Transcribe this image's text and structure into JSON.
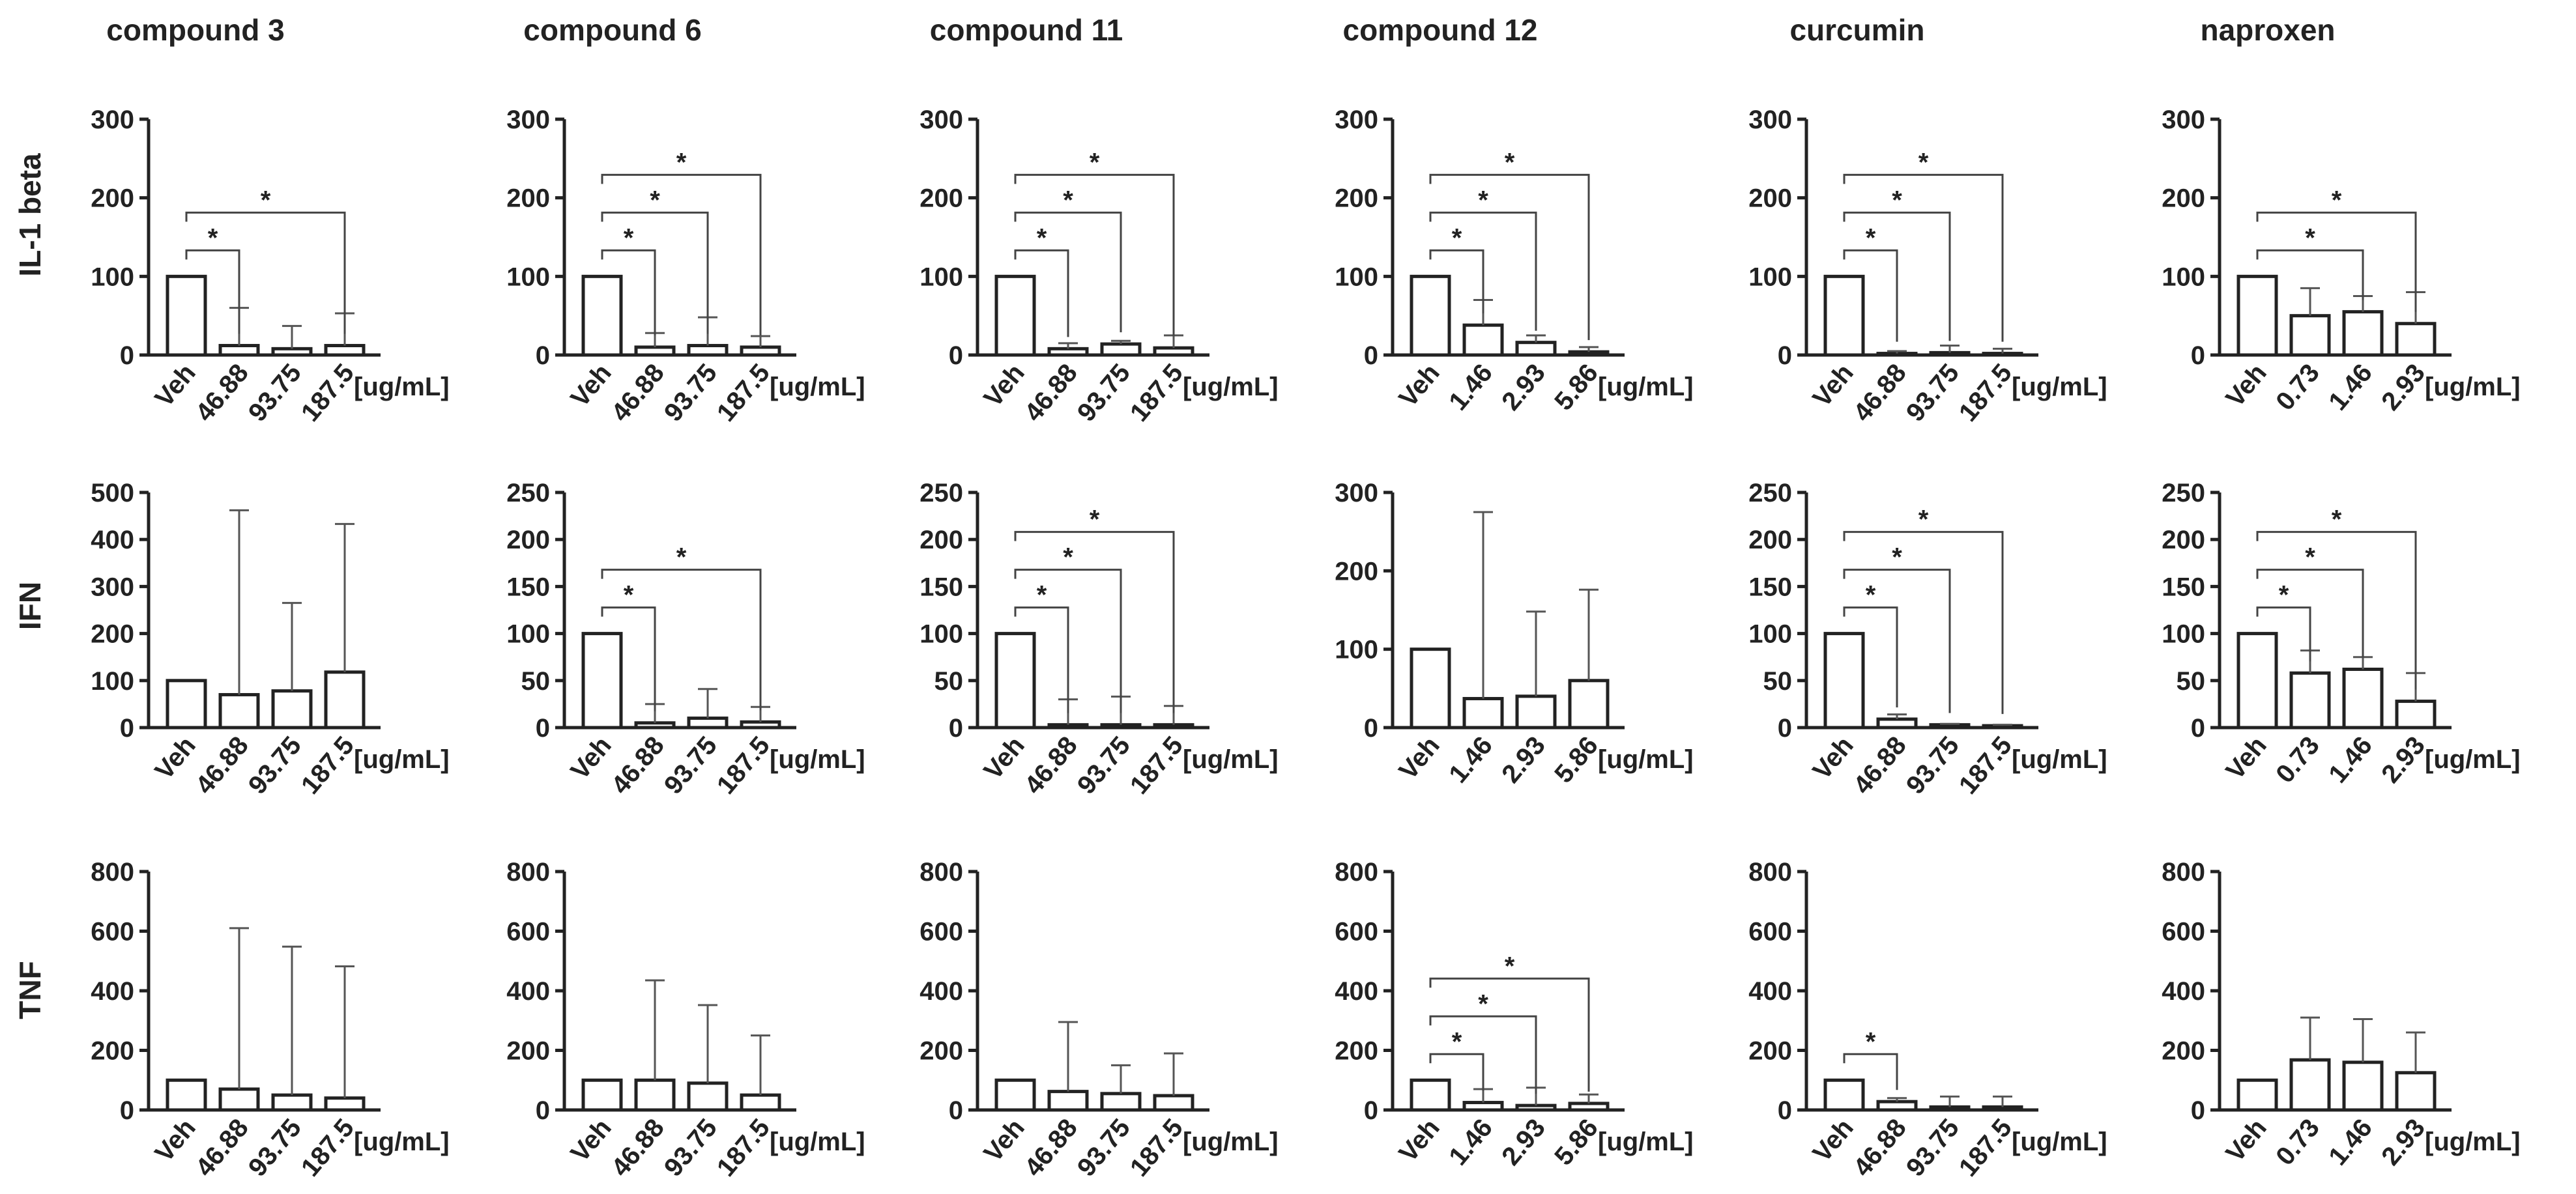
{
  "unit_label": "[ug/mL]",
  "column_titles": [
    "compound 3",
    "compound 6",
    "compound 11",
    "compound 12",
    "curcumin",
    "naproxen"
  ],
  "row_labels": [
    "IL-1 beta",
    "IFN",
    "TNF"
  ],
  "significance_symbol": "*",
  "chart_data": [
    {
      "type": "bar",
      "panel": "compound 3 / IL-1 beta",
      "title": "compound 3",
      "ylabel": "IL-1 beta",
      "categories": [
        "Veh",
        "46.88",
        "93.75",
        "187.5"
      ],
      "values": [
        100,
        12,
        8,
        12
      ],
      "error_upper": [
        0,
        60,
        37,
        53
      ],
      "ylim": [
        0,
        300
      ],
      "yticks": [
        0,
        100,
        200,
        300
      ],
      "significance": [
        {
          "from": 0,
          "to": 1,
          "label": "*"
        },
        {
          "from": 0,
          "to": 3,
          "label": "*"
        }
      ]
    },
    {
      "type": "bar",
      "panel": "compound 6 / IL-1 beta",
      "title": "compound 6",
      "ylabel": "IL-1 beta",
      "categories": [
        "Veh",
        "46.88",
        "93.75",
        "187.5"
      ],
      "values": [
        100,
        10,
        12,
        10
      ],
      "error_upper": [
        0,
        28,
        48,
        24
      ],
      "ylim": [
        0,
        300
      ],
      "yticks": [
        0,
        100,
        200,
        300
      ],
      "significance": [
        {
          "from": 0,
          "to": 1,
          "label": "*"
        },
        {
          "from": 0,
          "to": 2,
          "label": "*"
        },
        {
          "from": 0,
          "to": 3,
          "label": "*"
        }
      ]
    },
    {
      "type": "bar",
      "panel": "compound 11 / IL-1 beta",
      "title": "compound 11",
      "ylabel": "IL-1 beta",
      "categories": [
        "Veh",
        "46.88",
        "93.75",
        "187.5"
      ],
      "values": [
        100,
        8,
        14,
        9
      ],
      "error_upper": [
        0,
        15,
        18,
        25
      ],
      "ylim": [
        0,
        300
      ],
      "yticks": [
        0,
        100,
        200,
        300
      ],
      "significance": [
        {
          "from": 0,
          "to": 1,
          "label": "*"
        },
        {
          "from": 0,
          "to": 2,
          "label": "*"
        },
        {
          "from": 0,
          "to": 3,
          "label": "*"
        }
      ]
    },
    {
      "type": "bar",
      "panel": "compound 12 / IL-1 beta",
      "title": "compound 12",
      "ylabel": "IL-1 beta",
      "categories": [
        "Veh",
        "1.46",
        "2.93",
        "5.86"
      ],
      "values": [
        100,
        38,
        16,
        4
      ],
      "error_upper": [
        0,
        70,
        25,
        10
      ],
      "ylim": [
        0,
        300
      ],
      "yticks": [
        0,
        100,
        200,
        300
      ],
      "significance": [
        {
          "from": 0,
          "to": 1,
          "label": "*"
        },
        {
          "from": 0,
          "to": 2,
          "label": "*"
        },
        {
          "from": 0,
          "to": 3,
          "label": "*"
        }
      ]
    },
    {
      "type": "bar",
      "panel": "curcumin / IL-1 beta",
      "title": "curcumin",
      "ylabel": "IL-1 beta",
      "categories": [
        "Veh",
        "46.88",
        "93.75",
        "187.5"
      ],
      "values": [
        100,
        2,
        3,
        2
      ],
      "error_upper": [
        0,
        5,
        12,
        8
      ],
      "ylim": [
        0,
        300
      ],
      "yticks": [
        0,
        100,
        200,
        300
      ],
      "significance": [
        {
          "from": 0,
          "to": 1,
          "label": "*"
        },
        {
          "from": 0,
          "to": 2,
          "label": "*"
        },
        {
          "from": 0,
          "to": 3,
          "label": "*"
        }
      ]
    },
    {
      "type": "bar",
      "panel": "naproxen / IL-1 beta",
      "title": "naproxen",
      "ylabel": "IL-1 beta",
      "categories": [
        "Veh",
        "0.73",
        "1.46",
        "2.93"
      ],
      "values": [
        100,
        50,
        55,
        40
      ],
      "error_upper": [
        0,
        85,
        75,
        80
      ],
      "ylim": [
        0,
        300
      ],
      "yticks": [
        0,
        100,
        200,
        300
      ],
      "significance": [
        {
          "from": 0,
          "to": 2,
          "label": "*"
        },
        {
          "from": 0,
          "to": 3,
          "label": "*"
        }
      ]
    },
    {
      "type": "bar",
      "panel": "compound 3 / IFN",
      "title": "compound 3",
      "ylabel": "IFN",
      "categories": [
        "Veh",
        "46.88",
        "93.75",
        "187.5"
      ],
      "values": [
        100,
        70,
        78,
        118
      ],
      "error_upper": [
        0,
        462,
        265,
        433
      ],
      "ylim": [
        0,
        500
      ],
      "yticks": [
        0,
        100,
        200,
        300,
        400,
        500
      ],
      "significance": []
    },
    {
      "type": "bar",
      "panel": "compound 6 / IFN",
      "title": "compound 6",
      "ylabel": "IFN",
      "categories": [
        "Veh",
        "46.88",
        "93.75",
        "187.5"
      ],
      "values": [
        100,
        5,
        10,
        6
      ],
      "error_upper": [
        0,
        25,
        41,
        22
      ],
      "ylim": [
        0,
        250
      ],
      "yticks": [
        0,
        50,
        100,
        150,
        200,
        250
      ],
      "significance": [
        {
          "from": 0,
          "to": 1,
          "label": "*"
        },
        {
          "from": 0,
          "to": 3,
          "label": "*"
        }
      ]
    },
    {
      "type": "bar",
      "panel": "compound 11 / IFN",
      "title": "compound 11",
      "ylabel": "IFN",
      "categories": [
        "Veh",
        "46.88",
        "93.75",
        "187.5"
      ],
      "values": [
        100,
        3,
        3,
        3
      ],
      "error_upper": [
        0,
        30,
        33,
        23
      ],
      "ylim": [
        0,
        250
      ],
      "yticks": [
        0,
        50,
        100,
        150,
        200,
        250
      ],
      "significance": [
        {
          "from": 0,
          "to": 1,
          "label": "*"
        },
        {
          "from": 0,
          "to": 2,
          "label": "*"
        },
        {
          "from": 0,
          "to": 3,
          "label": "*"
        }
      ]
    },
    {
      "type": "bar",
      "panel": "compound 12 / IFN",
      "title": "compound 12",
      "ylabel": "IFN",
      "categories": [
        "Veh",
        "1.46",
        "2.93",
        "5.86"
      ],
      "values": [
        100,
        37,
        40,
        60
      ],
      "error_upper": [
        0,
        275,
        148,
        176
      ],
      "ylim": [
        0,
        300
      ],
      "yticks": [
        0,
        100,
        200,
        300
      ],
      "significance": []
    },
    {
      "type": "bar",
      "panel": "curcumin / IFN",
      "title": "curcumin",
      "ylabel": "IFN",
      "categories": [
        "Veh",
        "46.88",
        "93.75",
        "187.5"
      ],
      "values": [
        100,
        9,
        3,
        2
      ],
      "error_upper": [
        0,
        14,
        4,
        3
      ],
      "ylim": [
        0,
        250
      ],
      "yticks": [
        0,
        50,
        100,
        150,
        200,
        250
      ],
      "significance": [
        {
          "from": 0,
          "to": 1,
          "label": "*"
        },
        {
          "from": 0,
          "to": 2,
          "label": "*"
        },
        {
          "from": 0,
          "to": 3,
          "label": "*"
        }
      ]
    },
    {
      "type": "bar",
      "panel": "naproxen / IFN",
      "title": "naproxen",
      "ylabel": "IFN",
      "categories": [
        "Veh",
        "0.73",
        "1.46",
        "2.93"
      ],
      "values": [
        100,
        58,
        62,
        28
      ],
      "error_upper": [
        0,
        82,
        75,
        58
      ],
      "ylim": [
        0,
        250
      ],
      "yticks": [
        0,
        50,
        100,
        150,
        200,
        250
      ],
      "significance": [
        {
          "from": 0,
          "to": 1,
          "label": "*"
        },
        {
          "from": 0,
          "to": 2,
          "label": "*"
        },
        {
          "from": 0,
          "to": 3,
          "label": "*"
        }
      ]
    },
    {
      "type": "bar",
      "panel": "compound 3 / TNF",
      "title": "compound 3",
      "ylabel": "TNF",
      "categories": [
        "Veh",
        "46.88",
        "93.75",
        "187.5"
      ],
      "values": [
        100,
        70,
        50,
        40
      ],
      "error_upper": [
        0,
        610,
        548,
        482
      ],
      "ylim": [
        0,
        800
      ],
      "yticks": [
        0,
        200,
        400,
        600,
        800
      ],
      "significance": []
    },
    {
      "type": "bar",
      "panel": "compound 6 / TNF",
      "title": "compound 6",
      "ylabel": "TNF",
      "categories": [
        "Veh",
        "46.88",
        "93.75",
        "187.5"
      ],
      "values": [
        100,
        100,
        90,
        50
      ],
      "error_upper": [
        0,
        435,
        352,
        250
      ],
      "ylim": [
        0,
        800
      ],
      "yticks": [
        0,
        200,
        400,
        600,
        800
      ],
      "significance": []
    },
    {
      "type": "bar",
      "panel": "compound 11 / TNF",
      "title": "compound 11",
      "ylabel": "TNF",
      "categories": [
        "Veh",
        "46.88",
        "93.75",
        "187.5"
      ],
      "values": [
        100,
        62,
        55,
        48
      ],
      "error_upper": [
        0,
        295,
        150,
        190
      ],
      "ylim": [
        0,
        800
      ],
      "yticks": [
        0,
        200,
        400,
        600,
        800
      ],
      "significance": []
    },
    {
      "type": "bar",
      "panel": "compound 12 / TNF",
      "title": "compound 12",
      "ylabel": "TNF",
      "categories": [
        "Veh",
        "1.46",
        "2.93",
        "5.86"
      ],
      "values": [
        100,
        25,
        15,
        22
      ],
      "error_upper": [
        0,
        70,
        75,
        52
      ],
      "ylim": [
        0,
        800
      ],
      "yticks": [
        0,
        200,
        400,
        600,
        800
      ],
      "significance": [
        {
          "from": 0,
          "to": 1,
          "label": "*"
        },
        {
          "from": 0,
          "to": 2,
          "label": "*"
        },
        {
          "from": 0,
          "to": 3,
          "label": "*"
        }
      ]
    },
    {
      "type": "bar",
      "panel": "curcumin / TNF",
      "title": "curcumin",
      "ylabel": "TNF",
      "categories": [
        "Veh",
        "46.88",
        "93.75",
        "187.5"
      ],
      "values": [
        100,
        28,
        10,
        10
      ],
      "error_upper": [
        0,
        40,
        45,
        45
      ],
      "ylim": [
        0,
        800
      ],
      "yticks": [
        0,
        200,
        400,
        600,
        800
      ],
      "significance": [
        {
          "from": 0,
          "to": 1,
          "label": "*"
        }
      ]
    },
    {
      "type": "bar",
      "panel": "naproxen / TNF",
      "title": "naproxen",
      "ylabel": "TNF",
      "categories": [
        "Veh",
        "0.73",
        "1.46",
        "2.93"
      ],
      "values": [
        100,
        168,
        160,
        125
      ],
      "error_upper": [
        0,
        310,
        305,
        260
      ],
      "ylim": [
        0,
        800
      ],
      "yticks": [
        0,
        200,
        400,
        600,
        800
      ],
      "significance": []
    }
  ]
}
